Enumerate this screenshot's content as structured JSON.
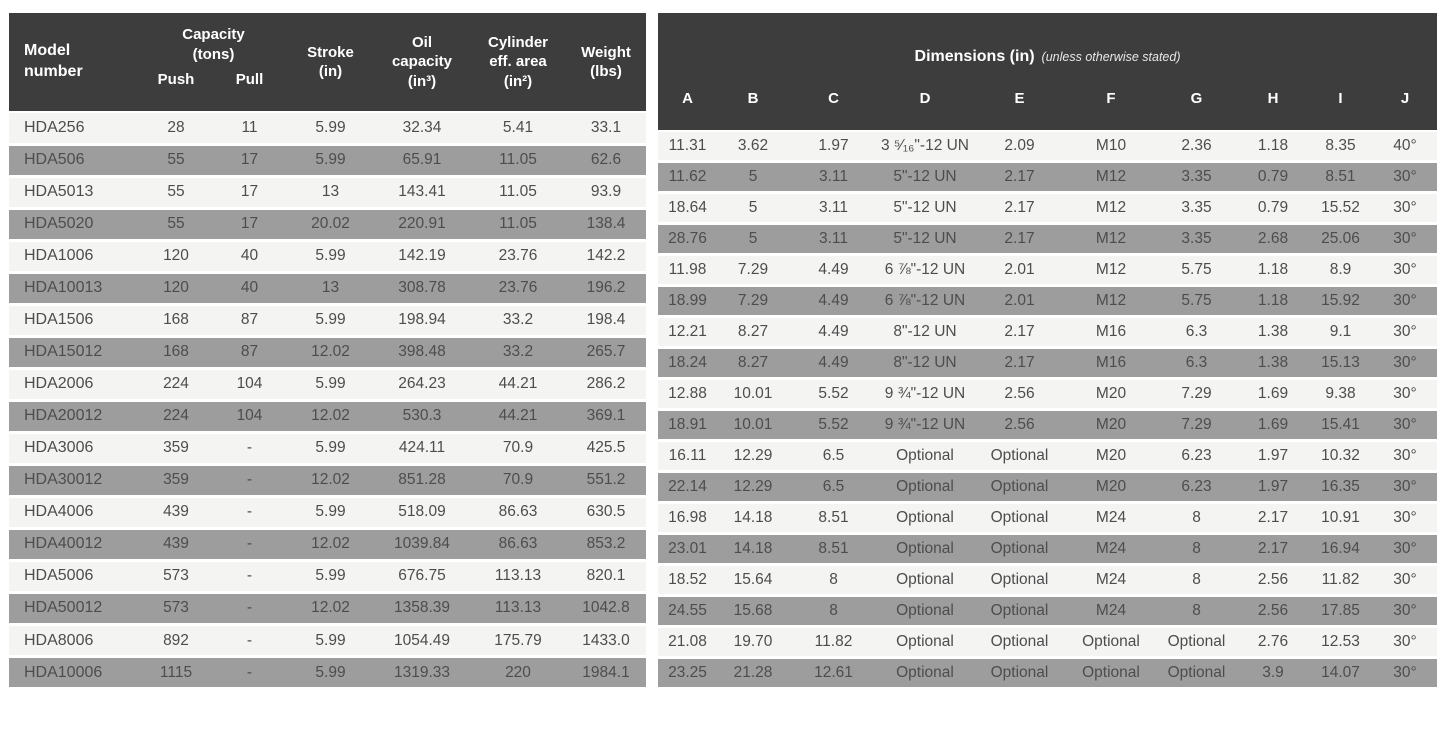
{
  "colors": {
    "header_bg": "#3d3d3d",
    "row_light": "#f4f4f3",
    "row_gray": "#9d9d9d",
    "cell_text": "#4d4d4d",
    "header_text": "#ffffff"
  },
  "left_table": {
    "header": {
      "model": "Model\nnumber",
      "capacity": "Capacity\n(tons)",
      "push": "Push",
      "pull": "Pull",
      "stroke": "Stroke\n(in)",
      "oil_capacity": "Oil\ncapacity\n(in³)",
      "cylinder_area": "Cylinder\neff. area\n(in²)",
      "weight": "Weight\n(lbs)"
    },
    "rows": [
      [
        "HDA256",
        "28",
        "11",
        "5.99",
        "32.34",
        "5.41",
        "33.1"
      ],
      [
        "HDA506",
        "55",
        "17",
        "5.99",
        "65.91",
        "11.05",
        "62.6"
      ],
      [
        "HDA5013",
        "55",
        "17",
        "13",
        "143.41",
        "11.05",
        "93.9"
      ],
      [
        "HDA5020",
        "55",
        "17",
        "20.02",
        "220.91",
        "11.05",
        "138.4"
      ],
      [
        "HDA1006",
        "120",
        "40",
        "5.99",
        "142.19",
        "23.76",
        "142.2"
      ],
      [
        "HDA10013",
        "120",
        "40",
        "13",
        "308.78",
        "23.76",
        "196.2"
      ],
      [
        "HDA1506",
        "168",
        "87",
        "5.99",
        "198.94",
        "33.2",
        "198.4"
      ],
      [
        "HDA15012",
        "168",
        "87",
        "12.02",
        "398.48",
        "33.2",
        "265.7"
      ],
      [
        "HDA2006",
        "224",
        "104",
        "5.99",
        "264.23",
        "44.21",
        "286.2"
      ],
      [
        "HDA20012",
        "224",
        "104",
        "12.02",
        "530.3",
        "44.21",
        "369.1"
      ],
      [
        "HDA3006",
        "359",
        "-",
        "5.99",
        "424.11",
        "70.9",
        "425.5"
      ],
      [
        "HDA30012",
        "359",
        "-",
        "12.02",
        "851.28",
        "70.9",
        "551.2"
      ],
      [
        "HDA4006",
        "439",
        "-",
        "5.99",
        "518.09",
        "86.63",
        "630.5"
      ],
      [
        "HDA40012",
        "439",
        "-",
        "12.02",
        "1039.84",
        "86.63",
        "853.2"
      ],
      [
        "HDA5006",
        "573",
        "-",
        "5.99",
        "676.75",
        "113.13",
        "820.1"
      ],
      [
        "HDA50012",
        "573",
        "-",
        "12.02",
        "1358.39",
        "113.13",
        "1042.8"
      ],
      [
        "HDA8006",
        "892",
        "-",
        "5.99",
        "1054.49",
        "175.79",
        "1433.0"
      ],
      [
        "HDA10006",
        "1115",
        "-",
        "5.99",
        "1319.33",
        "220",
        "1984.1"
      ]
    ]
  },
  "right_table": {
    "header": {
      "title": "Dimensions (in)",
      "subtitle": "(unless otherwise stated)",
      "columns": [
        "A",
        "B",
        "C",
        "D",
        "E",
        "F",
        "G",
        "H",
        "I",
        "J"
      ]
    },
    "rows": [
      [
        "11.31",
        "3.62",
        "1.97",
        "3 ⁵⁄₁₆\"-12 UN",
        "2.09",
        "M10",
        "2.36",
        "1.18",
        "8.35",
        "40°"
      ],
      [
        "11.62",
        "5",
        "3.11",
        "5\"-12 UN",
        "2.17",
        "M12",
        "3.35",
        "0.79",
        "8.51",
        "30°"
      ],
      [
        "18.64",
        "5",
        "3.11",
        "5\"-12 UN",
        "2.17",
        "M12",
        "3.35",
        "0.79",
        "15.52",
        "30°"
      ],
      [
        "28.76",
        "5",
        "3.11",
        "5\"-12 UN",
        "2.17",
        "M12",
        "3.35",
        "2.68",
        "25.06",
        "30°"
      ],
      [
        "11.98",
        "7.29",
        "4.49",
        "6 ⅞\"-12 UN",
        "2.01",
        "M12",
        "5.75",
        "1.18",
        "8.9",
        "30°"
      ],
      [
        "18.99",
        "7.29",
        "4.49",
        "6 ⅞\"-12 UN",
        "2.01",
        "M12",
        "5.75",
        "1.18",
        "15.92",
        "30°"
      ],
      [
        "12.21",
        "8.27",
        "4.49",
        "8\"-12 UN",
        "2.17",
        "M16",
        "6.3",
        "1.38",
        "9.1",
        "30°"
      ],
      [
        "18.24",
        "8.27",
        "4.49",
        "8\"-12 UN",
        "2.17",
        "M16",
        "6.3",
        "1.38",
        "15.13",
        "30°"
      ],
      [
        "12.88",
        "10.01",
        "5.52",
        "9 ¾\"-12 UN",
        "2.56",
        "M20",
        "7.29",
        "1.69",
        "9.38",
        "30°"
      ],
      [
        "18.91",
        "10.01",
        "5.52",
        "9 ¾\"-12 UN",
        "2.56",
        "M20",
        "7.29",
        "1.69",
        "15.41",
        "30°"
      ],
      [
        "16.11",
        "12.29",
        "6.5",
        "Optional",
        "Optional",
        "M20",
        "6.23",
        "1.97",
        "10.32",
        "30°"
      ],
      [
        "22.14",
        "12.29",
        "6.5",
        "Optional",
        "Optional",
        "M20",
        "6.23",
        "1.97",
        "16.35",
        "30°"
      ],
      [
        "16.98",
        "14.18",
        "8.51",
        "Optional",
        "Optional",
        "M24",
        "8",
        "2.17",
        "10.91",
        "30°"
      ],
      [
        "23.01",
        "14.18",
        "8.51",
        "Optional",
        "Optional",
        "M24",
        "8",
        "2.17",
        "16.94",
        "30°"
      ],
      [
        "18.52",
        "15.64",
        "8",
        "Optional",
        "Optional",
        "M24",
        "8",
        "2.56",
        "11.82",
        "30°"
      ],
      [
        "24.55",
        "15.68",
        "8",
        "Optional",
        "Optional",
        "M24",
        "8",
        "2.56",
        "17.85",
        "30°"
      ],
      [
        "21.08",
        "19.70",
        "11.82",
        "Optional",
        "Optional",
        "Optional",
        "Optional",
        "2.76",
        "12.53",
        "30°"
      ],
      [
        "23.25",
        "21.28",
        "12.61",
        "Optional",
        "Optional",
        "Optional",
        "Optional",
        "3.9",
        "14.07",
        "30°"
      ]
    ]
  }
}
